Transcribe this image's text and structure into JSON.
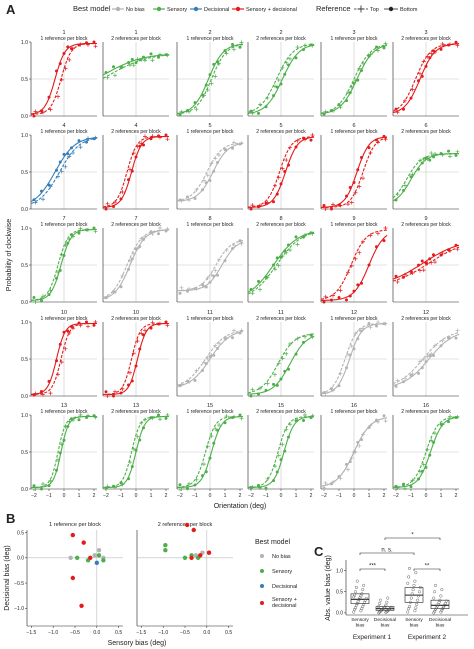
{
  "figure": {
    "panel_letters": [
      "A",
      "B",
      "C"
    ],
    "legend_title": "Best model",
    "legend_items": [
      "No bias",
      "Sensory",
      "Decisional",
      "Sensory + decisional"
    ],
    "reference_title": "Reference",
    "reference_items": [
      "Top",
      "Bottom"
    ],
    "block_titles": [
      "1 reference per block",
      "2 references per block"
    ]
  },
  "colors": {
    "nobias": "#b3b3b3",
    "sensory": "#4daf4a",
    "decisional": "#377eb8",
    "both": "#e41a1c"
  },
  "chart_data": [
    {
      "type": "line",
      "panel": "A",
      "xlabel": "Orientation (deg)",
      "ylabel": "Probability of clockwise",
      "xlim": [
        -2.2,
        2.2
      ],
      "ylim": [
        0,
        1
      ],
      "xticks": [
        -2,
        -1,
        0,
        1,
        2
      ],
      "yticks": [
        0.0,
        0.5,
        1.0
      ],
      "ytick_labels": [
        "0.0",
        "0.5",
        "1.0"
      ],
      "facets": [
        {
          "id": "1",
          "cond": "1 reference per block",
          "model": "both",
          "pse_bottom": -0.6,
          "pse_top": -0.2,
          "slope": 3.0,
          "lo": 0.02,
          "hi": 0.98
        },
        {
          "id": "1",
          "cond": "2 references per block",
          "model": "sensory",
          "pse_bottom": -2.0,
          "pse_top": -1.6,
          "slope": 0.8,
          "lo": 0.3,
          "hi": 0.85
        },
        {
          "id": "2",
          "cond": "1 reference per block",
          "model": "sensory",
          "pse_bottom": -0.1,
          "pse_top": 0.1,
          "slope": 2.0,
          "lo": 0.02,
          "hi": 0.98
        },
        {
          "id": "2",
          "cond": "2 references per block",
          "model": "sensory",
          "pse_bottom": 0.1,
          "pse_top": -0.3,
          "slope": 1.8,
          "lo": 0.02,
          "hi": 0.98
        },
        {
          "id": "3",
          "cond": "1 reference per block",
          "model": "sensory",
          "pse_bottom": 0.2,
          "pse_top": 0.0,
          "slope": 1.8,
          "lo": 0.02,
          "hi": 0.98
        },
        {
          "id": "3",
          "cond": "2 references per block",
          "model": "both",
          "pse_bottom": -0.4,
          "pse_top": -0.7,
          "slope": 2.0,
          "lo": 0.02,
          "hi": 0.98
        },
        {
          "id": "4",
          "cond": "1 reference per block",
          "model": "decisional",
          "pse_bottom": -0.6,
          "pse_top": -0.3,
          "slope": 1.5,
          "lo": 0.02,
          "hi": 0.98
        },
        {
          "id": "4",
          "cond": "2 references per block",
          "model": "both",
          "pse_bottom": -0.3,
          "pse_top": -0.6,
          "slope": 3.0,
          "lo": 0.02,
          "hi": 0.98
        },
        {
          "id": "5",
          "cond": "1 reference per block",
          "model": "nobias",
          "pse_bottom": 0.2,
          "pse_top": -0.2,
          "slope": 2.0,
          "lo": 0.1,
          "hi": 0.9
        },
        {
          "id": "5",
          "cond": "2 references per block",
          "model": "both",
          "pse_bottom": 0.3,
          "pse_top": -0.1,
          "slope": 2.5,
          "lo": 0.02,
          "hi": 0.98
        },
        {
          "id": "6",
          "cond": "1 reference per block",
          "model": "both",
          "pse_bottom": 0.2,
          "pse_top": 0.6,
          "slope": 2.5,
          "lo": 0.02,
          "hi": 0.98
        },
        {
          "id": "6",
          "cond": "2 references per block",
          "model": "sensory",
          "pse_bottom": -1.0,
          "pse_top": -1.3,
          "slope": 2.0,
          "lo": 0.05,
          "hi": 0.75
        },
        {
          "id": "7",
          "cond": "1 reference per block",
          "model": "sensory",
          "pse_bottom": -0.2,
          "pse_top": -0.4,
          "slope": 3.0,
          "lo": 0.02,
          "hi": 0.98
        },
        {
          "id": "7",
          "cond": "2 references per block",
          "model": "nobias",
          "pse_bottom": -0.4,
          "pse_top": -0.6,
          "slope": 2.0,
          "lo": 0.02,
          "hi": 0.98
        },
        {
          "id": "8",
          "cond": "1 reference per block",
          "model": "nobias",
          "pse_bottom": 0.8,
          "pse_top": 0.4,
          "slope": 2.0,
          "lo": 0.15,
          "hi": 0.85
        },
        {
          "id": "8",
          "cond": "2 references per block",
          "model": "sensory",
          "pse_bottom": -0.5,
          "pse_top": -0.3,
          "slope": 1.2,
          "lo": 0.02,
          "hi": 0.98
        },
        {
          "id": "9",
          "cond": "1 reference per block",
          "model": "both",
          "pse_bottom": 1.0,
          "pse_top": -0.2,
          "slope": 2.0,
          "lo": 0.02,
          "hi": 0.98
        },
        {
          "id": "9",
          "cond": "2 references per block",
          "model": "both",
          "pse_bottom": -0.2,
          "pse_top": 0.2,
          "slope": 0.8,
          "lo": 0.2,
          "hi": 0.85
        },
        {
          "id": "10",
          "cond": "1 reference per block",
          "model": "both",
          "pse_bottom": -0.5,
          "pse_top": -0.2,
          "slope": 3.5,
          "lo": 0.02,
          "hi": 0.98
        },
        {
          "id": "10",
          "cond": "2 references per block",
          "model": "both",
          "pse_bottom": 0.1,
          "pse_top": -0.3,
          "slope": 3.5,
          "lo": 0.02,
          "hi": 0.98
        },
        {
          "id": "11",
          "cond": "1 reference per block",
          "model": "nobias",
          "pse_bottom": 0.0,
          "pse_top": -0.3,
          "slope": 1.5,
          "lo": 0.1,
          "hi": 0.9
        },
        {
          "id": "11",
          "cond": "2 references per block",
          "model": "sensory",
          "pse_bottom": 0.6,
          "pse_top": -0.2,
          "slope": 1.8,
          "lo": 0.02,
          "hi": 0.85
        },
        {
          "id": "12",
          "cond": "1 reference per block",
          "model": "nobias",
          "pse_bottom": -0.3,
          "pse_top": -0.6,
          "slope": 2.5,
          "lo": 0.02,
          "hi": 0.98
        },
        {
          "id": "12",
          "cond": "2 references per block",
          "model": "nobias",
          "pse_bottom": 0.2,
          "pse_top": -0.2,
          "slope": 1.2,
          "lo": 0.1,
          "hi": 0.9
        },
        {
          "id": "13",
          "cond": "1 reference per block",
          "model": "sensory",
          "pse_bottom": -0.2,
          "pse_top": -0.4,
          "slope": 4.0,
          "lo": 0.02,
          "hi": 0.98
        },
        {
          "id": "13",
          "cond": "2 references per block",
          "model": "sensory",
          "pse_bottom": 0.0,
          "pse_top": -0.3,
          "slope": 3.5,
          "lo": 0.02,
          "hi": 0.98
        },
        {
          "id": "15",
          "cond": "1 reference per block",
          "model": "sensory",
          "pse_bottom": 0.1,
          "pse_top": -0.3,
          "slope": 3.0,
          "lo": 0.02,
          "hi": 0.98
        },
        {
          "id": "15",
          "cond": "2 references per block",
          "model": "sensory",
          "pse_bottom": 0.2,
          "pse_top": -0.2,
          "slope": 3.0,
          "lo": 0.02,
          "hi": 0.98
        },
        {
          "id": "16",
          "cond": "1 reference per block",
          "model": "nobias",
          "pse_bottom": 0.0,
          "pse_top": 0.0,
          "slope": 1.8,
          "lo": 0.02,
          "hi": 0.98
        },
        {
          "id": "16",
          "cond": "2 references per block",
          "model": "sensory",
          "pse_bottom": 0.3,
          "pse_top": 0.0,
          "slope": 2.5,
          "lo": 0.02,
          "hi": 0.98
        }
      ]
    },
    {
      "type": "scatter",
      "panel": "B",
      "xlabel": "Sensory bias (deg)",
      "ylabel": "Decisional bias (deg)",
      "xlim": [
        -1.6,
        0.6
      ],
      "ylim": [
        -1.35,
        0.55
      ],
      "xticks": [
        -1.5,
        -1.0,
        -0.5,
        0.0,
        0.5
      ],
      "xtick_labels": [
        "−1.5",
        "−1.0",
        "−0.5",
        "0.0",
        "0.5"
      ],
      "yticks": [
        -1.0,
        -0.5,
        0.0,
        0.5
      ],
      "ytick_labels": [
        "−1.0",
        "−0.5",
        "0.0",
        "0.5"
      ],
      "panels": [
        {
          "title": "1 reference per block",
          "points": [
            {
              "x": -0.05,
              "y": 0.05,
              "model": "nobias"
            },
            {
              "x": 0.05,
              "y": 0.15,
              "model": "nobias"
            },
            {
              "x": 0.15,
              "y": 0.0,
              "model": "nobias"
            },
            {
              "x": -0.6,
              "y": 0.0,
              "model": "nobias"
            },
            {
              "x": -0.45,
              "y": 0.0,
              "model": "sensory"
            },
            {
              "x": -0.2,
              "y": -0.05,
              "model": "sensory"
            },
            {
              "x": 0.05,
              "y": 0.05,
              "model": "sensory"
            },
            {
              "x": 0.15,
              "y": -0.05,
              "model": "sensory"
            },
            {
              "x": 0.0,
              "y": -0.1,
              "model": "decisional"
            },
            {
              "x": -0.55,
              "y": 0.45,
              "model": "both"
            },
            {
              "x": -0.3,
              "y": 0.3,
              "model": "both"
            },
            {
              "x": -0.55,
              "y": -0.4,
              "model": "both"
            },
            {
              "x": -0.35,
              "y": -0.95,
              "model": "both"
            },
            {
              "x": -0.15,
              "y": 0.0,
              "model": "both"
            }
          ]
        },
        {
          "title": "2 references per block",
          "points": [
            {
              "x": -0.25,
              "y": 0.05,
              "model": "nobias"
            },
            {
              "x": -0.1,
              "y": 0.1,
              "model": "nobias"
            },
            {
              "x": 0.05,
              "y": 0.1,
              "model": "nobias"
            },
            {
              "x": -0.95,
              "y": 0.25,
              "model": "sensory"
            },
            {
              "x": -0.95,
              "y": 0.15,
              "model": "sensory"
            },
            {
              "x": -0.5,
              "y": 0.0,
              "model": "sensory"
            },
            {
              "x": -0.35,
              "y": 0.05,
              "model": "sensory"
            },
            {
              "x": -0.2,
              "y": 0.0,
              "model": "sensory"
            },
            {
              "x": -0.45,
              "y": 0.65,
              "model": "both"
            },
            {
              "x": -0.3,
              "y": 0.55,
              "model": "both"
            },
            {
              "x": -0.35,
              "y": 0.0,
              "model": "both"
            },
            {
              "x": -0.15,
              "y": 0.05,
              "model": "both"
            },
            {
              "x": 0.05,
              "y": 0.1,
              "model": "both"
            }
          ]
        }
      ]
    },
    {
      "type": "box",
      "panel": "C",
      "ylabel": "Abs. value bias (deg)",
      "ylim": [
        -0.05,
        1.25
      ],
      "yticks": [
        0.0,
        0.5,
        1.0
      ],
      "ytick_labels": [
        "0.0",
        "0.5",
        "1.0"
      ],
      "groups": [
        {
          "experiment": "Experiment 1",
          "label": "Sensory bias",
          "q1": 0.22,
          "median": 0.32,
          "q3": 0.45,
          "points": [
            0.02,
            0.05,
            0.08,
            0.1,
            0.12,
            0.15,
            0.18,
            0.2,
            0.22,
            0.25,
            0.27,
            0.3,
            0.32,
            0.34,
            0.36,
            0.38,
            0.4,
            0.42,
            0.45,
            0.5,
            0.55,
            0.6,
            0.65,
            0.75
          ]
        },
        {
          "experiment": "Experiment 1",
          "label": "Decisional bias",
          "q1": 0.06,
          "median": 0.1,
          "q3": 0.15,
          "points": [
            0.0,
            0.01,
            0.02,
            0.03,
            0.04,
            0.05,
            0.06,
            0.07,
            0.08,
            0.09,
            0.1,
            0.11,
            0.12,
            0.13,
            0.14,
            0.15,
            0.18,
            0.22,
            0.25,
            0.3,
            0.35
          ]
        },
        {
          "experiment": "Experiment 2",
          "label": "Sensory bias",
          "q1": 0.25,
          "median": 0.42,
          "q3": 0.6,
          "points": [
            0.02,
            0.05,
            0.1,
            0.12,
            0.15,
            0.2,
            0.25,
            0.3,
            0.35,
            0.4,
            0.45,
            0.5,
            0.55,
            0.6,
            0.65,
            0.7,
            0.75,
            0.85,
            0.95,
            1.05
          ]
        },
        {
          "experiment": "Experiment 2",
          "label": "Decisional bias",
          "q1": 0.1,
          "median": 0.18,
          "q3": 0.3,
          "points": [
            0.0,
            0.02,
            0.04,
            0.06,
            0.08,
            0.1,
            0.12,
            0.14,
            0.16,
            0.18,
            0.2,
            0.22,
            0.25,
            0.28,
            0.3,
            0.35,
            0.4,
            0.5,
            0.55,
            0.65
          ]
        }
      ],
      "annotations": [
        "***",
        "n. s.",
        "*",
        "**"
      ],
      "experiments": [
        "Experiment 1",
        "Experiment 2"
      ],
      "xtick_labels": [
        "Sensory bias",
        "Decisional bias",
        "Sensory bias",
        "Decisional bias"
      ]
    }
  ]
}
